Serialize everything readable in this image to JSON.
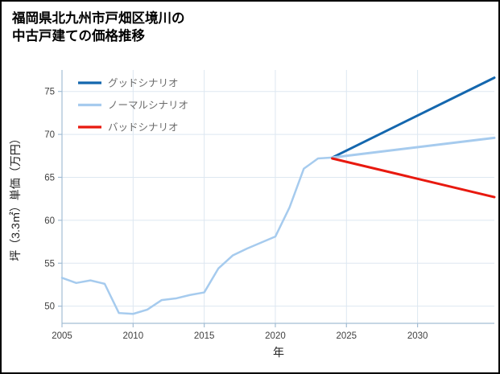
{
  "title": {
    "line1": "福岡県北九州市戸畑区境川の",
    "line2": "中古戸建ての価格推移"
  },
  "chart_data": {
    "type": "line",
    "title": "福岡県北九州市戸畑区境川の中古戸建ての価格推移",
    "xlabel": "年",
    "ylabel": "坪（3.3㎡）単価（万円）",
    "xlim": [
      2005,
      2035.4
    ],
    "ylim": [
      48,
      77.5
    ],
    "xticks": [
      2005,
      2010,
      2015,
      2020,
      2025,
      2030
    ],
    "yticks": [
      50,
      55,
      60,
      65,
      70,
      75
    ],
    "grid": true,
    "legend_position": "top-left",
    "grid_color": "#dde7f1",
    "spine_color": "#a3bdd4",
    "series": [
      {
        "id": "history",
        "name": "",
        "color": "#a6cbee",
        "width": 2.5,
        "in_legend": false,
        "x": [
          2005,
          2006,
          2007,
          2008,
          2009,
          2010,
          2011,
          2012,
          2013,
          2014,
          2015,
          2016,
          2017,
          2018,
          2019,
          2020,
          2021,
          2022,
          2023,
          2024
        ],
        "values": [
          53.3,
          52.7,
          53.0,
          52.6,
          49.2,
          49.1,
          49.6,
          50.7,
          50.9,
          51.3,
          51.6,
          54.4,
          55.9,
          56.7,
          57.4,
          58.1,
          61.5,
          66.0,
          67.2,
          67.3
        ]
      },
      {
        "id": "good",
        "name": "グッドシナリオ",
        "color": "#1467ae",
        "width": 3,
        "in_legend": true,
        "x": [
          2024,
          2035.4
        ],
        "values": [
          67.3,
          76.6
        ]
      },
      {
        "id": "normal",
        "name": "ノーマルシナリオ",
        "color": "#a6cbee",
        "width": 3,
        "in_legend": true,
        "x": [
          2024,
          2035.4
        ],
        "values": [
          67.3,
          69.6
        ]
      },
      {
        "id": "bad",
        "name": "バッドシナリオ",
        "color": "#e8190f",
        "width": 3,
        "in_legend": true,
        "x": [
          2024,
          2035.4
        ],
        "values": [
          67.2,
          62.7
        ]
      }
    ]
  }
}
